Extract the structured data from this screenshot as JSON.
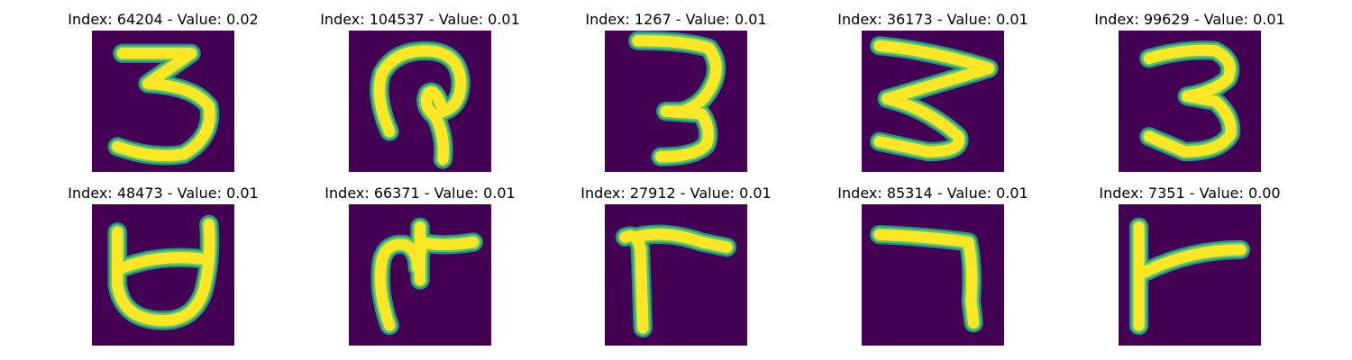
{
  "colors": {
    "background": "#440154",
    "stroke_core": "#fde725",
    "stroke_mid": "#5ec962",
    "stroke_edge": "#21918c"
  },
  "panels": [
    {
      "title": "Index: 64204 - Value: 0.02",
      "glyph": "3",
      "glyph_name": "digit-three"
    },
    {
      "title": "Index: 104537 - Value: 0.01",
      "glyph": "loop",
      "glyph_name": "loop-shape"
    },
    {
      "title": "Index: 1267 - Value: 0.01",
      "glyph": "3",
      "glyph_name": "digit-three"
    },
    {
      "title": "Index: 36173 - Value: 0.01",
      "glyph": "3",
      "glyph_name": "digit-three"
    },
    {
      "title": "Index: 99629 - Value: 0.01",
      "glyph": "3",
      "glyph_name": "digit-three"
    },
    {
      "title": "Index: 48473 - Value: 0.01",
      "glyph": "cup",
      "glyph_name": "cup-shape"
    },
    {
      "title": "Index: 66371 - Value: 0.01",
      "glyph": "branch",
      "glyph_name": "branch-shape"
    },
    {
      "title": "Index: 27912 - Value: 0.01",
      "glyph": "gamma",
      "glyph_name": "gamma-shape"
    },
    {
      "title": "Index: 85314 - Value: 0.01",
      "glyph": "seven",
      "glyph_name": "seven-shape"
    },
    {
      "title": "Index: 7351 - Value: 0.00",
      "glyph": "flag",
      "glyph_name": "flag-shape"
    }
  ]
}
